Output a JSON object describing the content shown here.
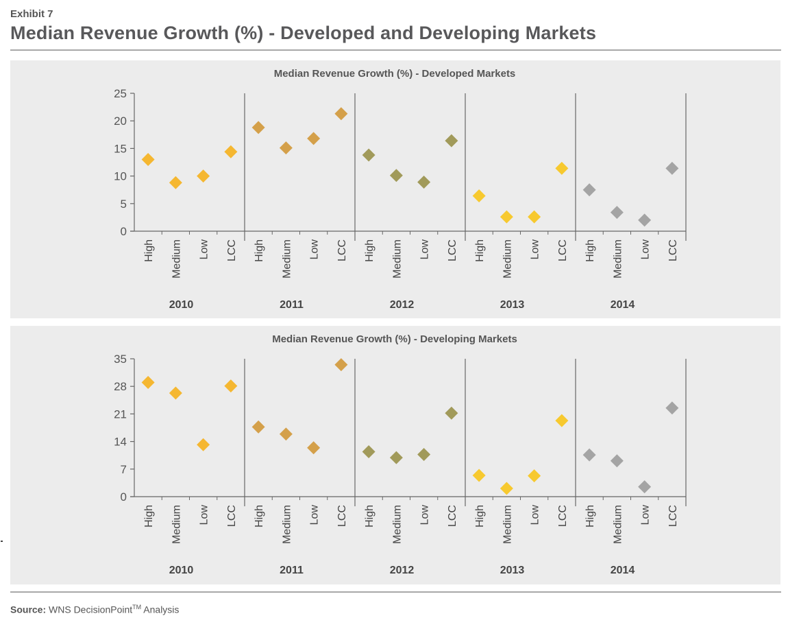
{
  "header": {
    "exhibit": "Exhibit 7",
    "title": "Median Revenue Growth (%) - Developed and Developing Markets"
  },
  "footer": {
    "source_label": "Source:",
    "source_text": "WNS DecisionPoint",
    "source_mark": "TM",
    "source_suffix": " Analysis"
  },
  "colors": {
    "panel_bg": "#ececec",
    "axis": "#666666",
    "text": "#555555",
    "2010": "#f5b731",
    "2011": "#d4a04a",
    "2012": "#a19a5a",
    "2013": "#f7c92f",
    "2014": "#a4a4a4"
  },
  "chart_data": [
    {
      "type": "scatter",
      "title": "Median Revenue Growth (%) - Developed Markets",
      "groups": [
        "2010",
        "2011",
        "2012",
        "2013",
        "2014"
      ],
      "categories": [
        "High",
        "Medium",
        "Low",
        "LCC"
      ],
      "ylim": [
        0,
        25
      ],
      "yticks": [
        0,
        5,
        10,
        15,
        20,
        25
      ],
      "grid": false,
      "series": [
        {
          "group": "2010",
          "values": [
            13,
            8.8,
            10,
            14.4
          ]
        },
        {
          "group": "2011",
          "values": [
            18.8,
            15.1,
            16.8,
            21.3
          ]
        },
        {
          "group": "2012",
          "values": [
            13.8,
            10.1,
            8.9,
            16.4
          ]
        },
        {
          "group": "2013",
          "values": [
            6.4,
            2.6,
            2.6,
            11.4
          ]
        },
        {
          "group": "2014",
          "values": [
            7.5,
            3.4,
            2,
            11.4
          ]
        }
      ]
    },
    {
      "type": "scatter",
      "title": "Median Revenue Growth (%) - Developing Markets",
      "groups": [
        "2010",
        "2011",
        "2012",
        "2013",
        "2014"
      ],
      "categories": [
        "High",
        "Medium",
        "Low",
        "LCC"
      ],
      "ylim": [
        0,
        35
      ],
      "yticks": [
        0,
        7,
        14,
        21,
        28,
        35
      ],
      "grid": false,
      "series": [
        {
          "group": "2010",
          "values": [
            29,
            26.3,
            13.2,
            28.1
          ]
        },
        {
          "group": "2011",
          "values": [
            17.7,
            15.9,
            12.4,
            33.5
          ]
        },
        {
          "group": "2012",
          "values": [
            11.4,
            9.9,
            10.7,
            21.2
          ]
        },
        {
          "group": "2013",
          "values": [
            5.4,
            2.1,
            5.3,
            19.3
          ]
        },
        {
          "group": "2014",
          "values": [
            10.6,
            9.1,
            2.5,
            22.5
          ]
        }
      ]
    }
  ]
}
